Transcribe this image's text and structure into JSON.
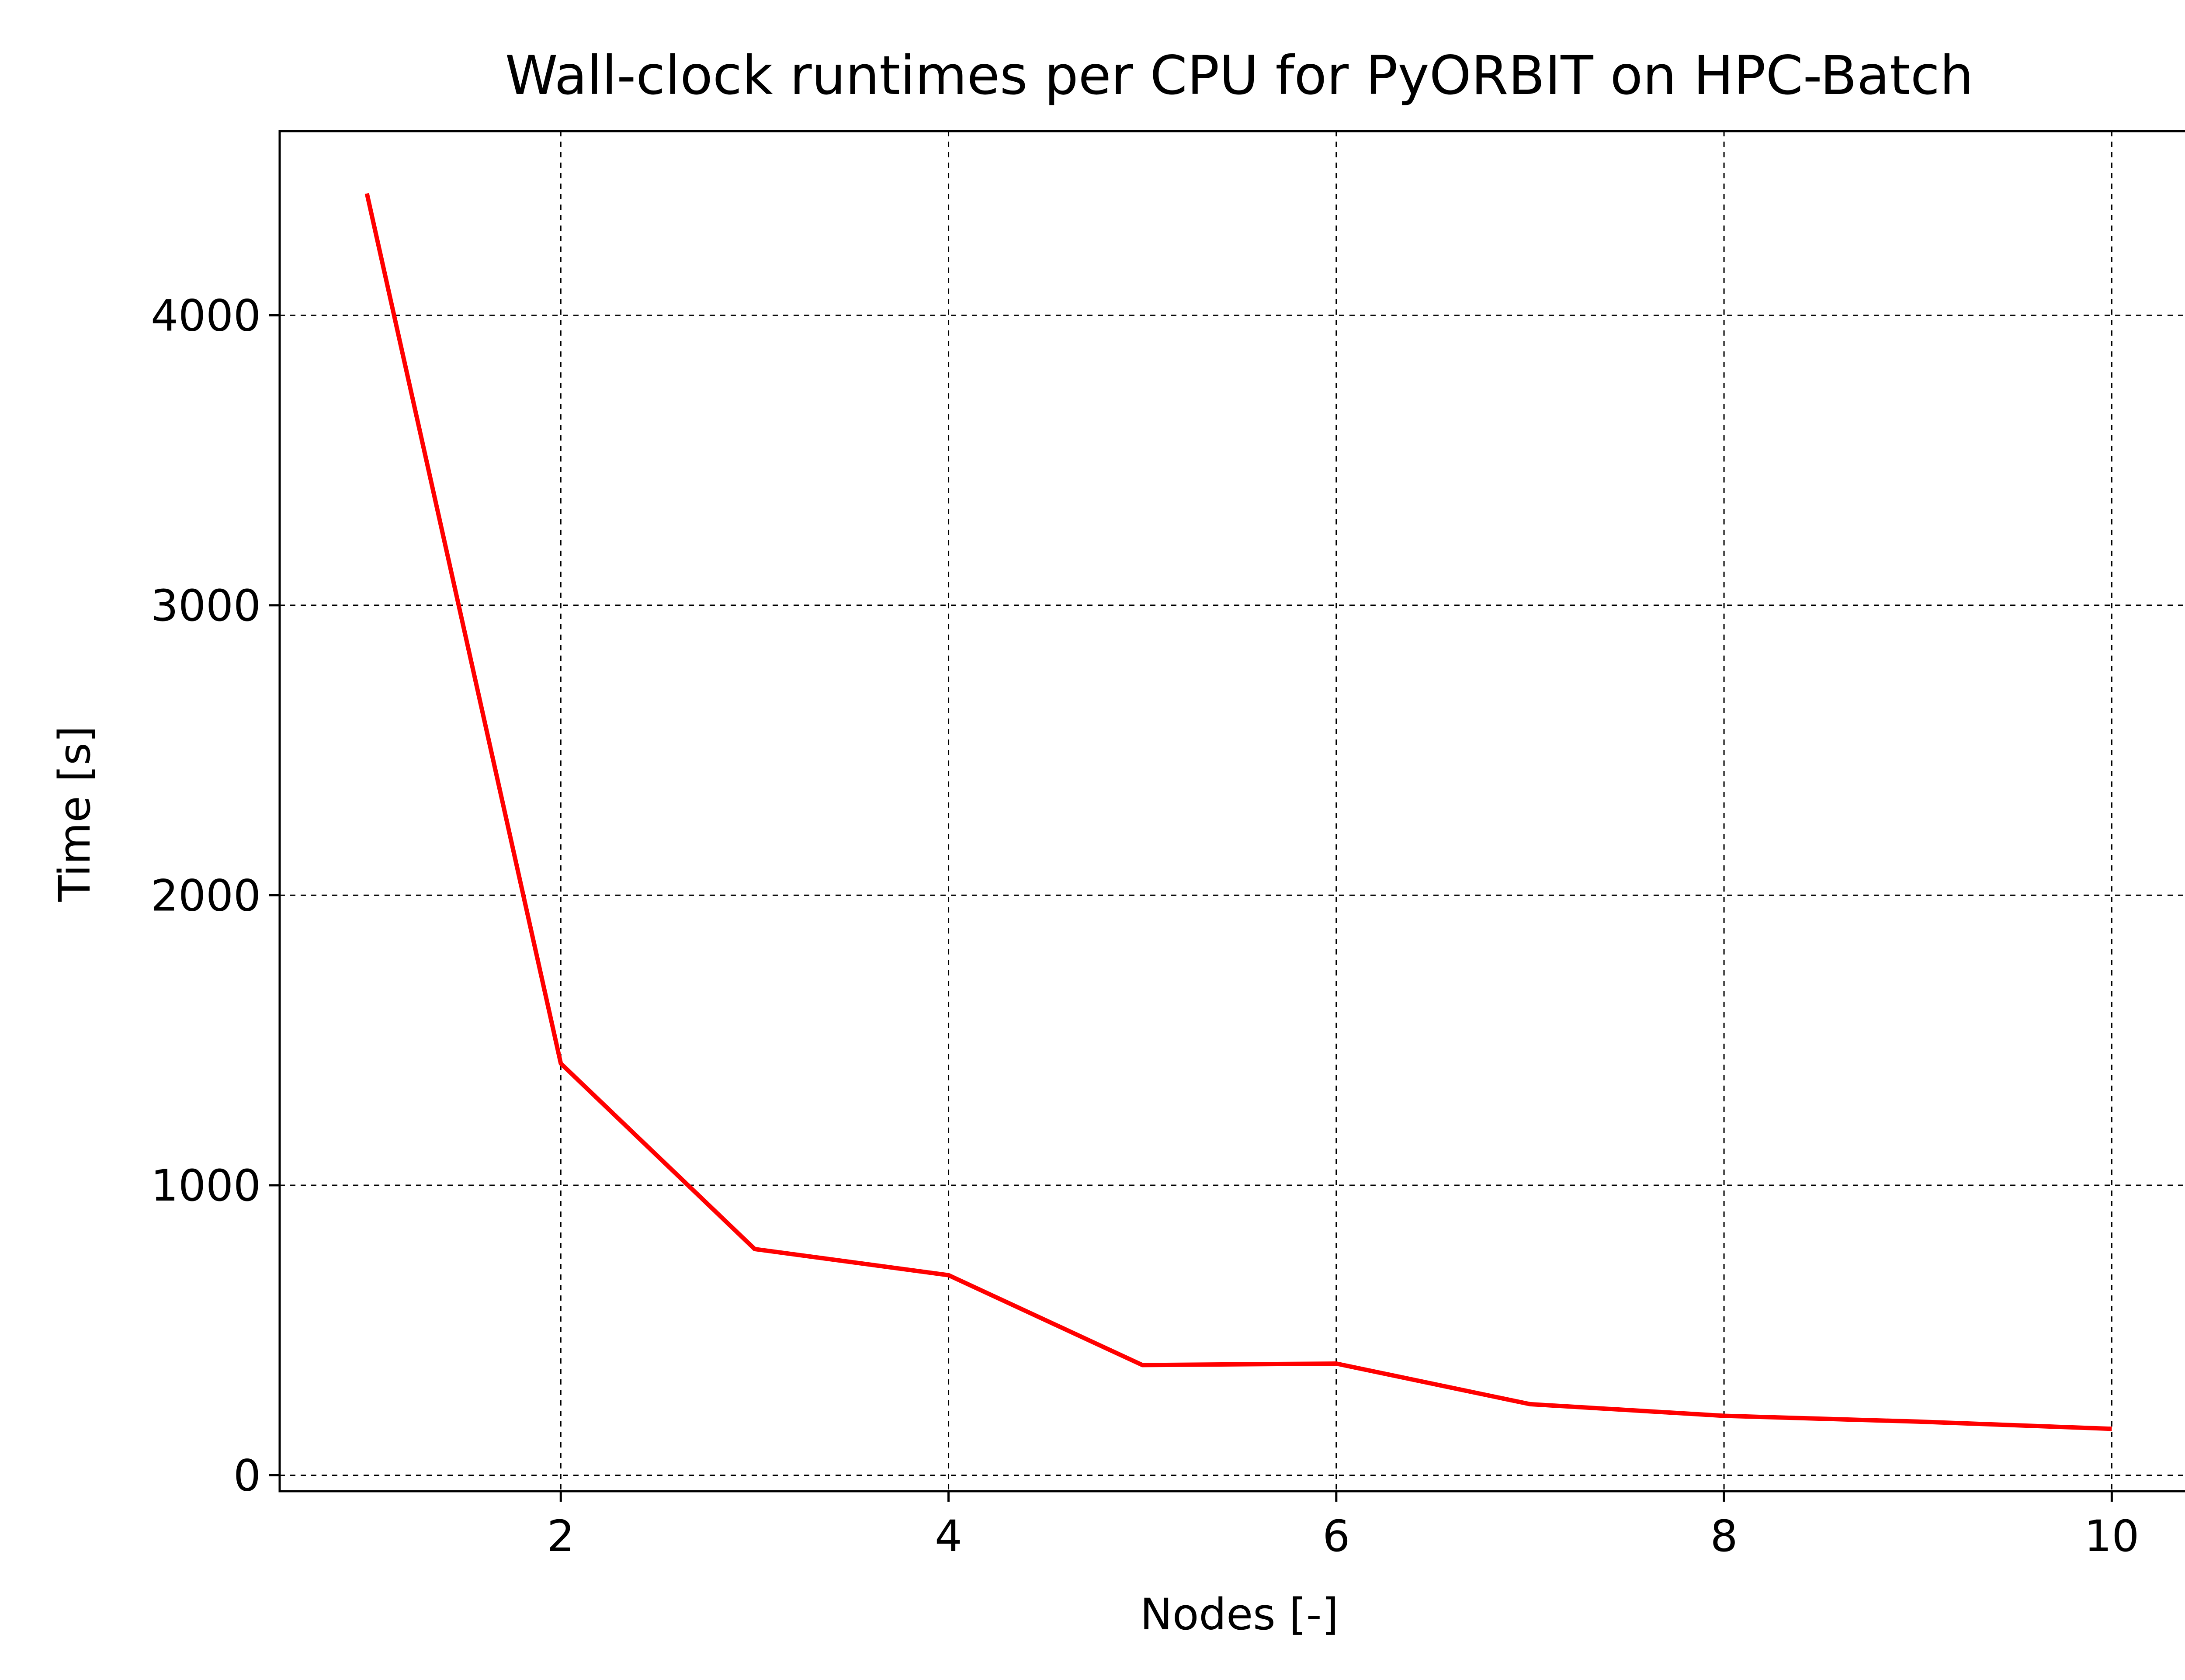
{
  "chart_data": {
    "type": "line",
    "title": "Wall-clock runtimes per CPU for PyORBIT on HPC-Batch",
    "xlabel": "Nodes [-]",
    "ylabel": "Time [s]",
    "xlim": [
      0.55,
      10.45
    ],
    "ylim": [
      -55,
      4635
    ],
    "xticks": [
      2,
      4,
      6,
      8,
      10
    ],
    "yticks": [
      0,
      1000,
      2000,
      3000,
      4000
    ],
    "grid": true,
    "grid_style": "dashed",
    "series": [
      {
        "color": "#ff0000",
        "x": [
          1,
          2,
          3,
          4,
          5,
          6,
          7,
          8,
          9,
          10
        ],
        "y": [
          4420,
          1420,
          780,
          690,
          380,
          385,
          245,
          205,
          185,
          160
        ]
      }
    ]
  }
}
